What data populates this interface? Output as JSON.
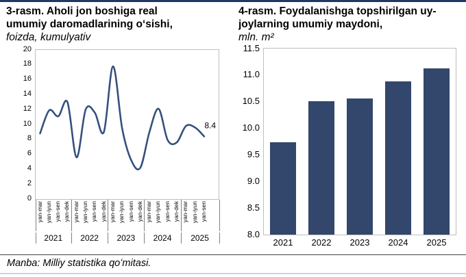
{
  "footer": {
    "source_note": "Manba: Milliy statistika qoʻmitasi."
  },
  "chart_data": [
    {
      "type": "line",
      "title": "3-rasm. Aholi jon boshiga real umumiy daromadlarining oʻsishi, foizda, kumulyativ",
      "title_lines": [
        "3-rasm. Aholi jon boshiga real",
        "umumiy daromadlarining oʻsishi,"
      ],
      "subtitle": "foizda, kumulyativ",
      "ylim": [
        0,
        20
      ],
      "yticks": [
        "20",
        "18",
        "16",
        "14",
        "12",
        "10",
        "8",
        "6",
        "4",
        "2",
        "0"
      ],
      "grid": false,
      "legend": false,
      "smooth": true,
      "line_color": "#35507D",
      "end_label": "8.4",
      "groups": [
        {
          "year": "2021",
          "ticks": [
            "yan-mar",
            "yan-iyun",
            "yan-sen",
            "yan-dek"
          ],
          "values": [
            8.8,
            11.9,
            11.1,
            13.0
          ]
        },
        {
          "year": "2022",
          "ticks": [
            "yan-mar",
            "yan-iyun",
            "yan-sen",
            "yan-dek"
          ],
          "values": [
            5.6,
            12.0,
            11.6,
            9.0
          ]
        },
        {
          "year": "2023",
          "ticks": [
            "yan-mar",
            "yan-iyun",
            "yan-sen",
            "yan-dek"
          ],
          "values": [
            17.8,
            9.5,
            5.2,
            4.2
          ]
        },
        {
          "year": "2024",
          "ticks": [
            "yan-mar",
            "yan-iyun",
            "yan-sen",
            "yan-dek"
          ],
          "values": [
            9.0,
            12.1,
            7.9,
            7.6
          ]
        },
        {
          "year": "2025",
          "ticks": [
            "yan-mar",
            "yan-iyun",
            "yan-sen"
          ],
          "values": [
            9.8,
            9.6,
            8.4
          ]
        }
      ]
    },
    {
      "type": "bar",
      "title": "4-rasm. Foydalanishga topshirilgan uy-joylarning umumiy maydoni, mln. m²",
      "title_lines": [
        "4-rasm. Foydalanishga topshirilgan uy-",
        "joylarning umumiy maydoni,"
      ],
      "subtitle": "mln. m²",
      "categories": [
        "2021",
        "2022",
        "2023",
        "2024",
        "2025"
      ],
      "values": [
        9.74,
        10.51,
        10.56,
        10.88,
        11.13
      ],
      "ylim": [
        8.0,
        11.5
      ],
      "yticks": [
        "11.5",
        "11.0",
        "10.5",
        "10.0",
        "9.5",
        "9.0",
        "8.5",
        "8.0"
      ],
      "grid": false,
      "legend": false,
      "bar_color": "#33466B"
    }
  ]
}
